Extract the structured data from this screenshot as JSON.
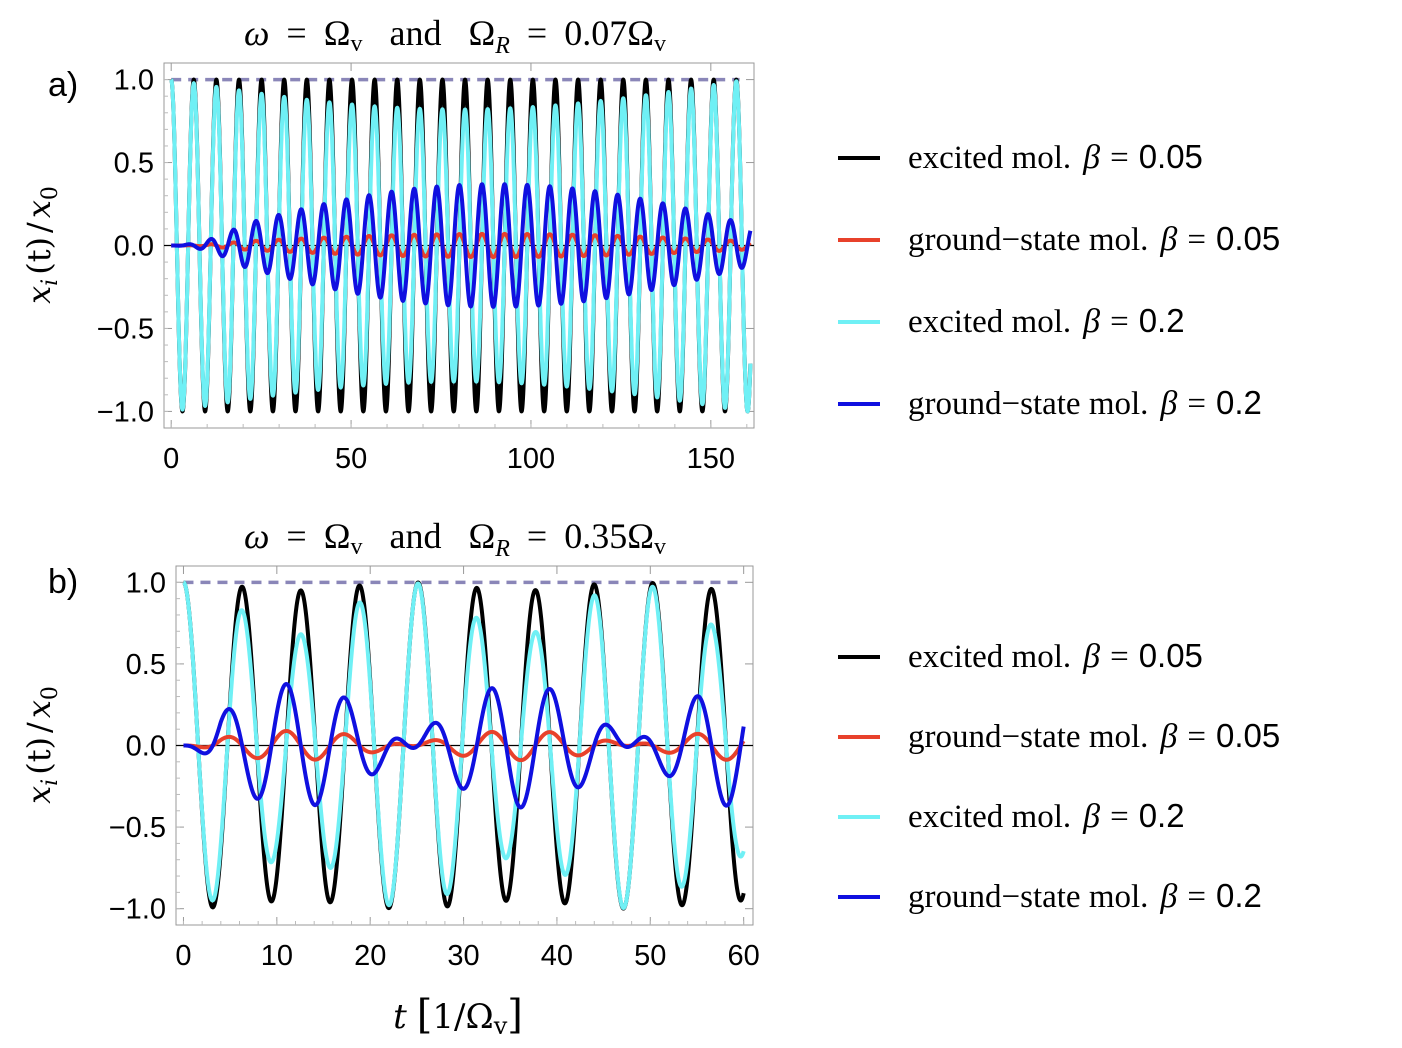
{
  "chart_data": [
    {
      "type": "line",
      "panel_label": "a)",
      "title": "ω = Ωv  and  ΩR = 0.07Ωv",
      "title_parts": {
        "omega": "ω",
        "eq1": "=",
        "Omega": "Ω",
        "sub_v": "v",
        "and": "and",
        "R": "R",
        "eq2": "=",
        "coef": "0.07"
      },
      "xlabel": "",
      "ylabel": "x_i(t)/x_0",
      "xlim": [
        -2,
        162
      ],
      "ylim": [
        -1.1,
        1.1
      ],
      "xticks": [
        "0",
        "50",
        "100",
        "150"
      ],
      "yticks": [
        "1.0",
        "0.5",
        "0.0",
        "−0.5",
        "−1.0"
      ],
      "omega": 1.0,
      "series": [
        {
          "name": "excited mol. β = 0.05",
          "color": "#000000",
          "model": "excited",
          "decay_amp": 0.0,
          "min_amp": 0.97
        },
        {
          "name": "ground-state mol. β = 0.05",
          "color": "#e8412b",
          "model": "ground",
          "peak": 0.07,
          "peak_t": 95
        },
        {
          "name": "excited mol. β = 0.2",
          "color": "#6ff0f5",
          "model": "excited",
          "decay_amp": 0.18,
          "min_amp": 0.72
        },
        {
          "name": "ground-state mol. β = 0.2",
          "color": "#1010e0",
          "model": "ground",
          "peak": 0.37,
          "peak_t": 85
        }
      ],
      "reference_line": {
        "y": 1.0,
        "color": "#8a86b8",
        "style": "dashed"
      }
    },
    {
      "type": "line",
      "panel_label": "b)",
      "title": "ω = Ωv  and  ΩR = 0.35Ωv",
      "title_parts": {
        "omega": "ω",
        "eq1": "=",
        "Omega": "Ω",
        "sub_v": "v",
        "and": "and",
        "R": "R",
        "eq2": "=",
        "coef": "0.35"
      },
      "xlabel": "t [1/Ωv]",
      "ylabel": "x_i(t)/x_0",
      "xlim": [
        -0.8,
        61
      ],
      "ylim": [
        -1.1,
        1.1
      ],
      "xticks": [
        "0",
        "10",
        "20",
        "30",
        "40",
        "50",
        "60"
      ],
      "yticks": [
        "1.0",
        "0.5",
        "0.0",
        "−0.5",
        "−1.0"
      ],
      "omega": 1.0,
      "series": [
        {
          "name": "excited mol. β = 0.05",
          "color": "#000000",
          "model": "excited_b",
          "amp_beat": 0.05
        },
        {
          "name": "ground-state mol. β = 0.05",
          "color": "#e8412b",
          "model": "ground_b",
          "peak": 0.09
        },
        {
          "name": "excited mol. β = 0.2",
          "color": "#6ff0f5",
          "model": "excited_b",
          "amp_beat": 0.32
        },
        {
          "name": "ground-state mol. β = 0.2",
          "color": "#1010e0",
          "model": "ground_b",
          "peak": 0.38
        }
      ],
      "reference_line": {
        "y": 1.0,
        "color": "#8a86b8",
        "style": "dashed"
      }
    }
  ],
  "legend": {
    "items": [
      {
        "label": "excited mol.",
        "beta": "β",
        "eq": "=",
        "value": "0.05",
        "color": "#000000"
      },
      {
        "label": "ground−state mol.",
        "beta": "β",
        "eq": "=",
        "value": "0.05",
        "color": "#e8412b"
      },
      {
        "label": "excited mol.",
        "beta": "β",
        "eq": "=",
        "value": "0.2",
        "color": "#6ff0f5"
      },
      {
        "label": "ground−state mol.",
        "beta": "β",
        "eq": "=",
        "value": "0.2",
        "color": "#1010e0"
      }
    ]
  },
  "axis_text": {
    "y_x": "x",
    "y_i": "i",
    "y_t": "(t)",
    "y_slash": "/",
    "y_x0": "x",
    "y_0": "0",
    "x_t": "t",
    "x_unit": "1/Ω",
    "x_v": "v"
  }
}
